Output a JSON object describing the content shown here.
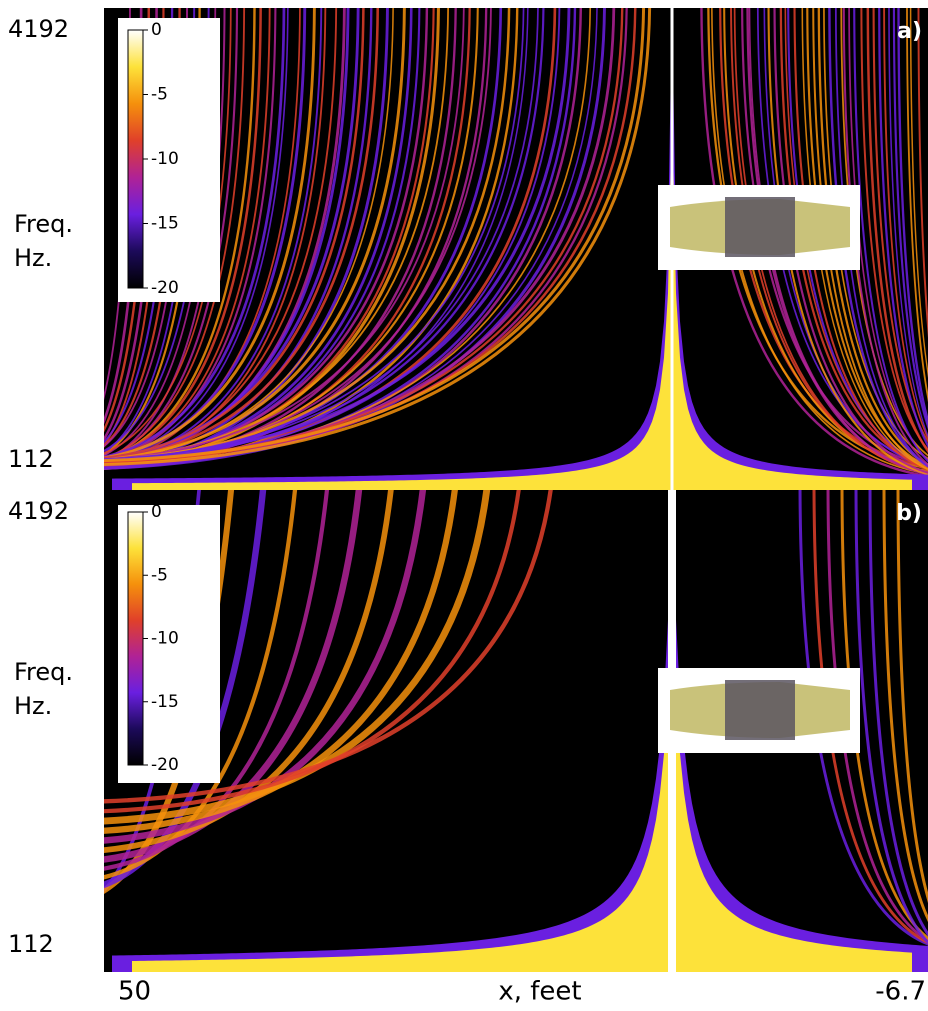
{
  "chart_data": [
    {
      "type": "heatmap",
      "panel_label": "a)",
      "ylabel": [
        "Freq.",
        "Hz."
      ],
      "ylim": [
        112,
        4192
      ],
      "yticks": [
        4192,
        112
      ],
      "clim": [
        -20,
        0
      ],
      "cticks": [
        0,
        -5,
        -10,
        -15,
        -20
      ],
      "colormap": [
        "#000000",
        "#1c0a5a",
        "#6a1fe0",
        "#b02296",
        "#e0402a",
        "#f5900c",
        "#fde23a",
        "#ffffff"
      ]
    },
    {
      "type": "heatmap",
      "panel_label": "b)",
      "ylabel": [
        "Freq.",
        "Hz."
      ],
      "ylim": [
        112,
        4192
      ],
      "yticks": [
        4192,
        112
      ],
      "clim": [
        -20,
        0
      ],
      "cticks": [
        0,
        -5,
        -10,
        -15,
        -20
      ],
      "colormap": [
        "#000000",
        "#1c0a5a",
        "#6a1fe0",
        "#b02296",
        "#e0402a",
        "#f5900c",
        "#fde23a",
        "#ffffff"
      ],
      "xlabel": "x, feet",
      "xlim": [
        50,
        -6.7
      ],
      "xticks": [
        50,
        -6.7
      ]
    }
  ]
}
